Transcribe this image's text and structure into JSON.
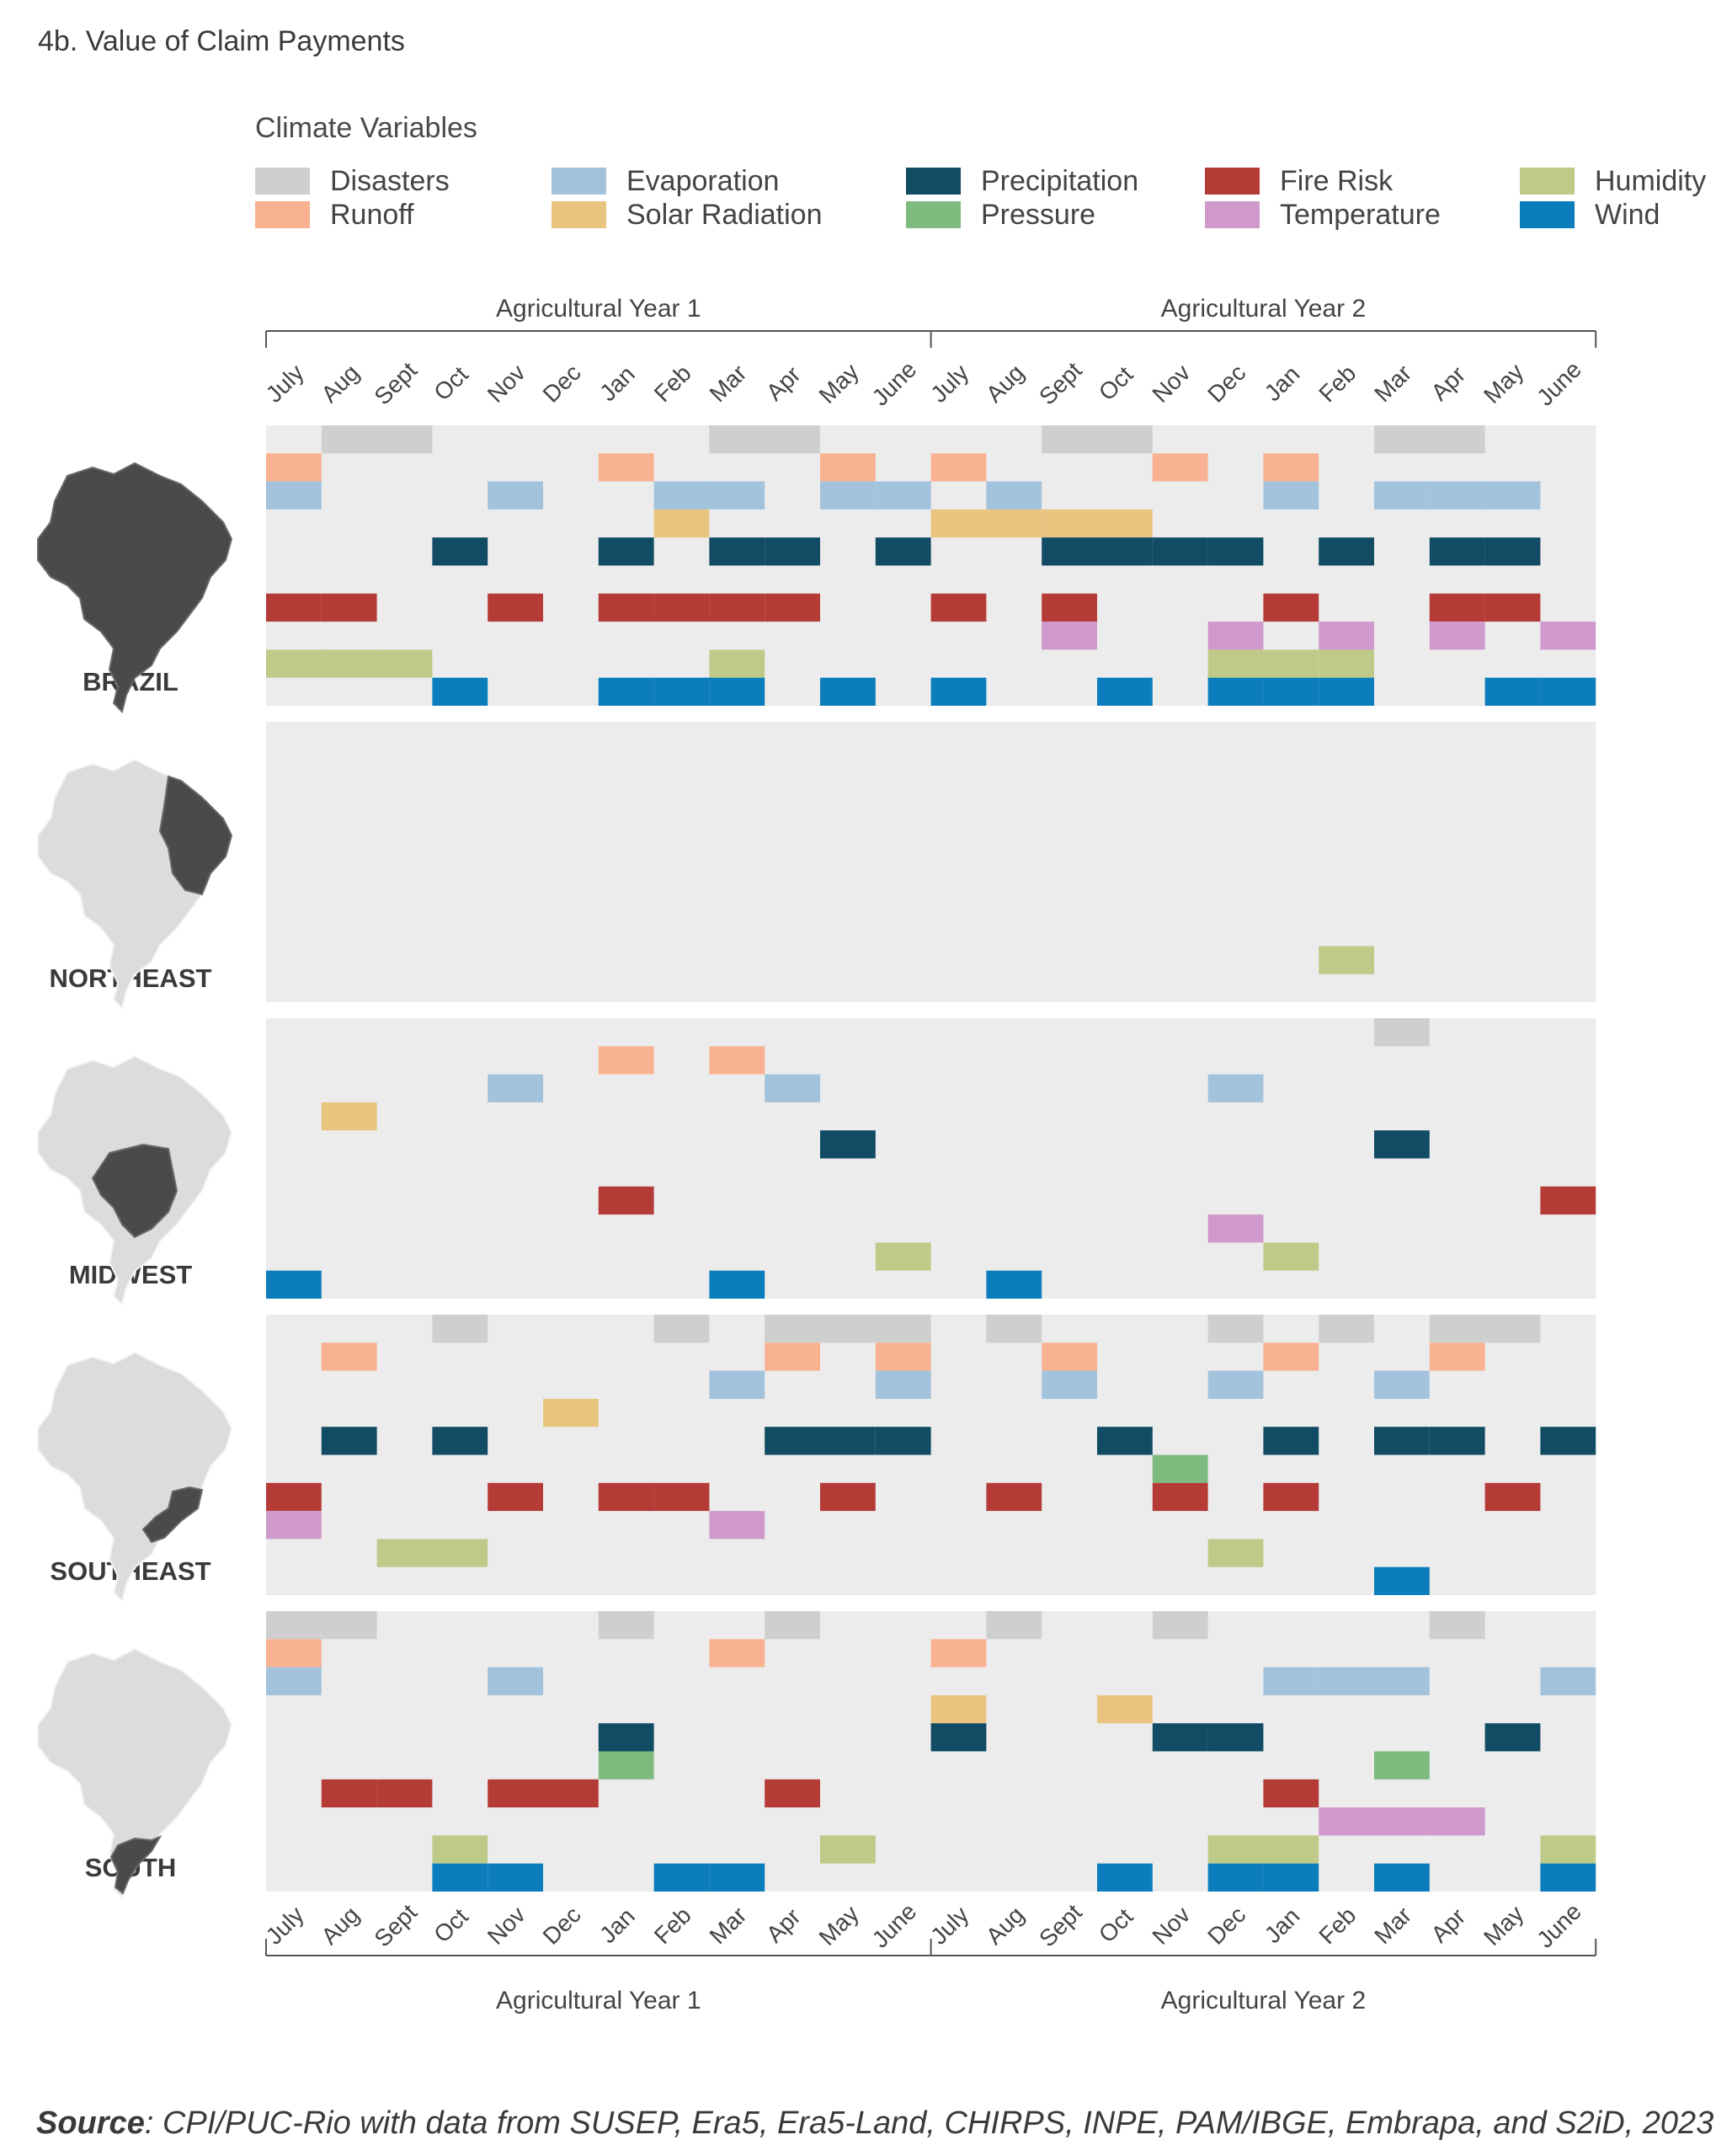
{
  "title": "4b. Value of Claim Payments",
  "legend_title": "Climate Variables",
  "source": {
    "label": "Source",
    "text": ": CPI/PUC-Rio with data from SUSEP, Era5, Era5-Land, CHIRPS, INPE, PAM/IBGE, Embrapa, and S2iD, 2023"
  },
  "chart_data": {
    "type": "heatmap",
    "year_labels": [
      "Agricultural Year 1",
      "Agricultural Year 2"
    ],
    "months": [
      "July",
      "Aug",
      "Sept",
      "Oct",
      "Nov",
      "Dec",
      "Jan",
      "Feb",
      "Mar",
      "Apr",
      "May",
      "June",
      "July",
      "Aug",
      "Sept",
      "Oct",
      "Nov",
      "Dec",
      "Jan",
      "Feb",
      "Mar",
      "Apr",
      "May",
      "June"
    ],
    "variables": [
      {
        "name": "Disasters",
        "color": "#cfcfcf"
      },
      {
        "name": "Runoff",
        "color": "#f9b291"
      },
      {
        "name": "Evaporation",
        "color": "#a3c2dc"
      },
      {
        "name": "Solar Radiation",
        "color": "#e9c47e"
      },
      {
        "name": "Precipitation",
        "color": "#114b64"
      },
      {
        "name": "Pressure",
        "color": "#7dbb7f"
      },
      {
        "name": "Fire Risk",
        "color": "#b53b37"
      },
      {
        "name": "Temperature",
        "color": "#cf9acb"
      },
      {
        "name": "Humidity",
        "color": "#bfca88"
      },
      {
        "name": "Wind",
        "color": "#0b7dbc"
      }
    ],
    "legend_order": [
      "Disasters",
      "Runoff",
      "Evaporation",
      "Solar Radiation",
      "Precipitation",
      "Pressure",
      "Fire Risk",
      "Temperature",
      "Humidity",
      "Wind"
    ],
    "regions": [
      {
        "name": "BRAZIL",
        "rows": [
          [
            1,
            2,
            8,
            9,
            14,
            15,
            20,
            21
          ],
          [
            0,
            6,
            10,
            12,
            16,
            18
          ],
          [
            0,
            4,
            7,
            8,
            10,
            11,
            13,
            18,
            20,
            21,
            22
          ],
          [
            7,
            12,
            13,
            14,
            15
          ],
          [
            3,
            6,
            8,
            9,
            11,
            14,
            15,
            16,
            17,
            19,
            21,
            22
          ],
          [],
          [
            0,
            1,
            4,
            6,
            7,
            8,
            9,
            12,
            14,
            18,
            21,
            22
          ],
          [
            14,
            17,
            19,
            21,
            23
          ],
          [
            0,
            1,
            2,
            8,
            17,
            18,
            19
          ],
          [
            3,
            6,
            7,
            8,
            10,
            12,
            15,
            17,
            18,
            19,
            22,
            23
          ]
        ]
      },
      {
        "name": "NORTHEAST",
        "rows": [
          [],
          [],
          [],
          [],
          [],
          [],
          [],
          [],
          [
            19
          ],
          []
        ]
      },
      {
        "name": "MIDWEST",
        "rows": [
          [
            20
          ],
          [
            6,
            8
          ],
          [
            4,
            9,
            17
          ],
          [
            1
          ],
          [
            10,
            20
          ],
          [],
          [
            6,
            23
          ],
          [
            17
          ],
          [
            11,
            18
          ],
          [
            0,
            8,
            13
          ]
        ]
      },
      {
        "name": "SOUTHEAST",
        "rows": [
          [
            3,
            7,
            9,
            10,
            11,
            13,
            17,
            19,
            21,
            22
          ],
          [
            1,
            9,
            11,
            14,
            18,
            21
          ],
          [
            8,
            11,
            14,
            17,
            20
          ],
          [
            5
          ],
          [
            1,
            3,
            9,
            10,
            11,
            15,
            18,
            20,
            21,
            23
          ],
          [
            16
          ],
          [
            0,
            4,
            6,
            7,
            10,
            13,
            16,
            18,
            22
          ],
          [
            0,
            8
          ],
          [
            2,
            3,
            17
          ],
          [
            20
          ]
        ]
      },
      {
        "name": "SOUTH",
        "rows": [
          [
            0,
            1,
            6,
            9,
            13,
            16,
            21
          ],
          [
            0,
            8,
            12
          ],
          [
            0,
            4,
            18,
            19,
            20,
            23
          ],
          [
            12,
            15
          ],
          [
            6,
            12,
            16,
            17,
            22
          ],
          [
            6,
            20
          ],
          [
            1,
            2,
            4,
            5,
            9,
            18
          ],
          [
            19,
            20,
            21
          ],
          [
            3,
            10,
            17,
            18,
            23
          ],
          [
            3,
            4,
            7,
            8,
            15,
            17,
            18,
            20,
            23
          ]
        ]
      }
    ]
  }
}
